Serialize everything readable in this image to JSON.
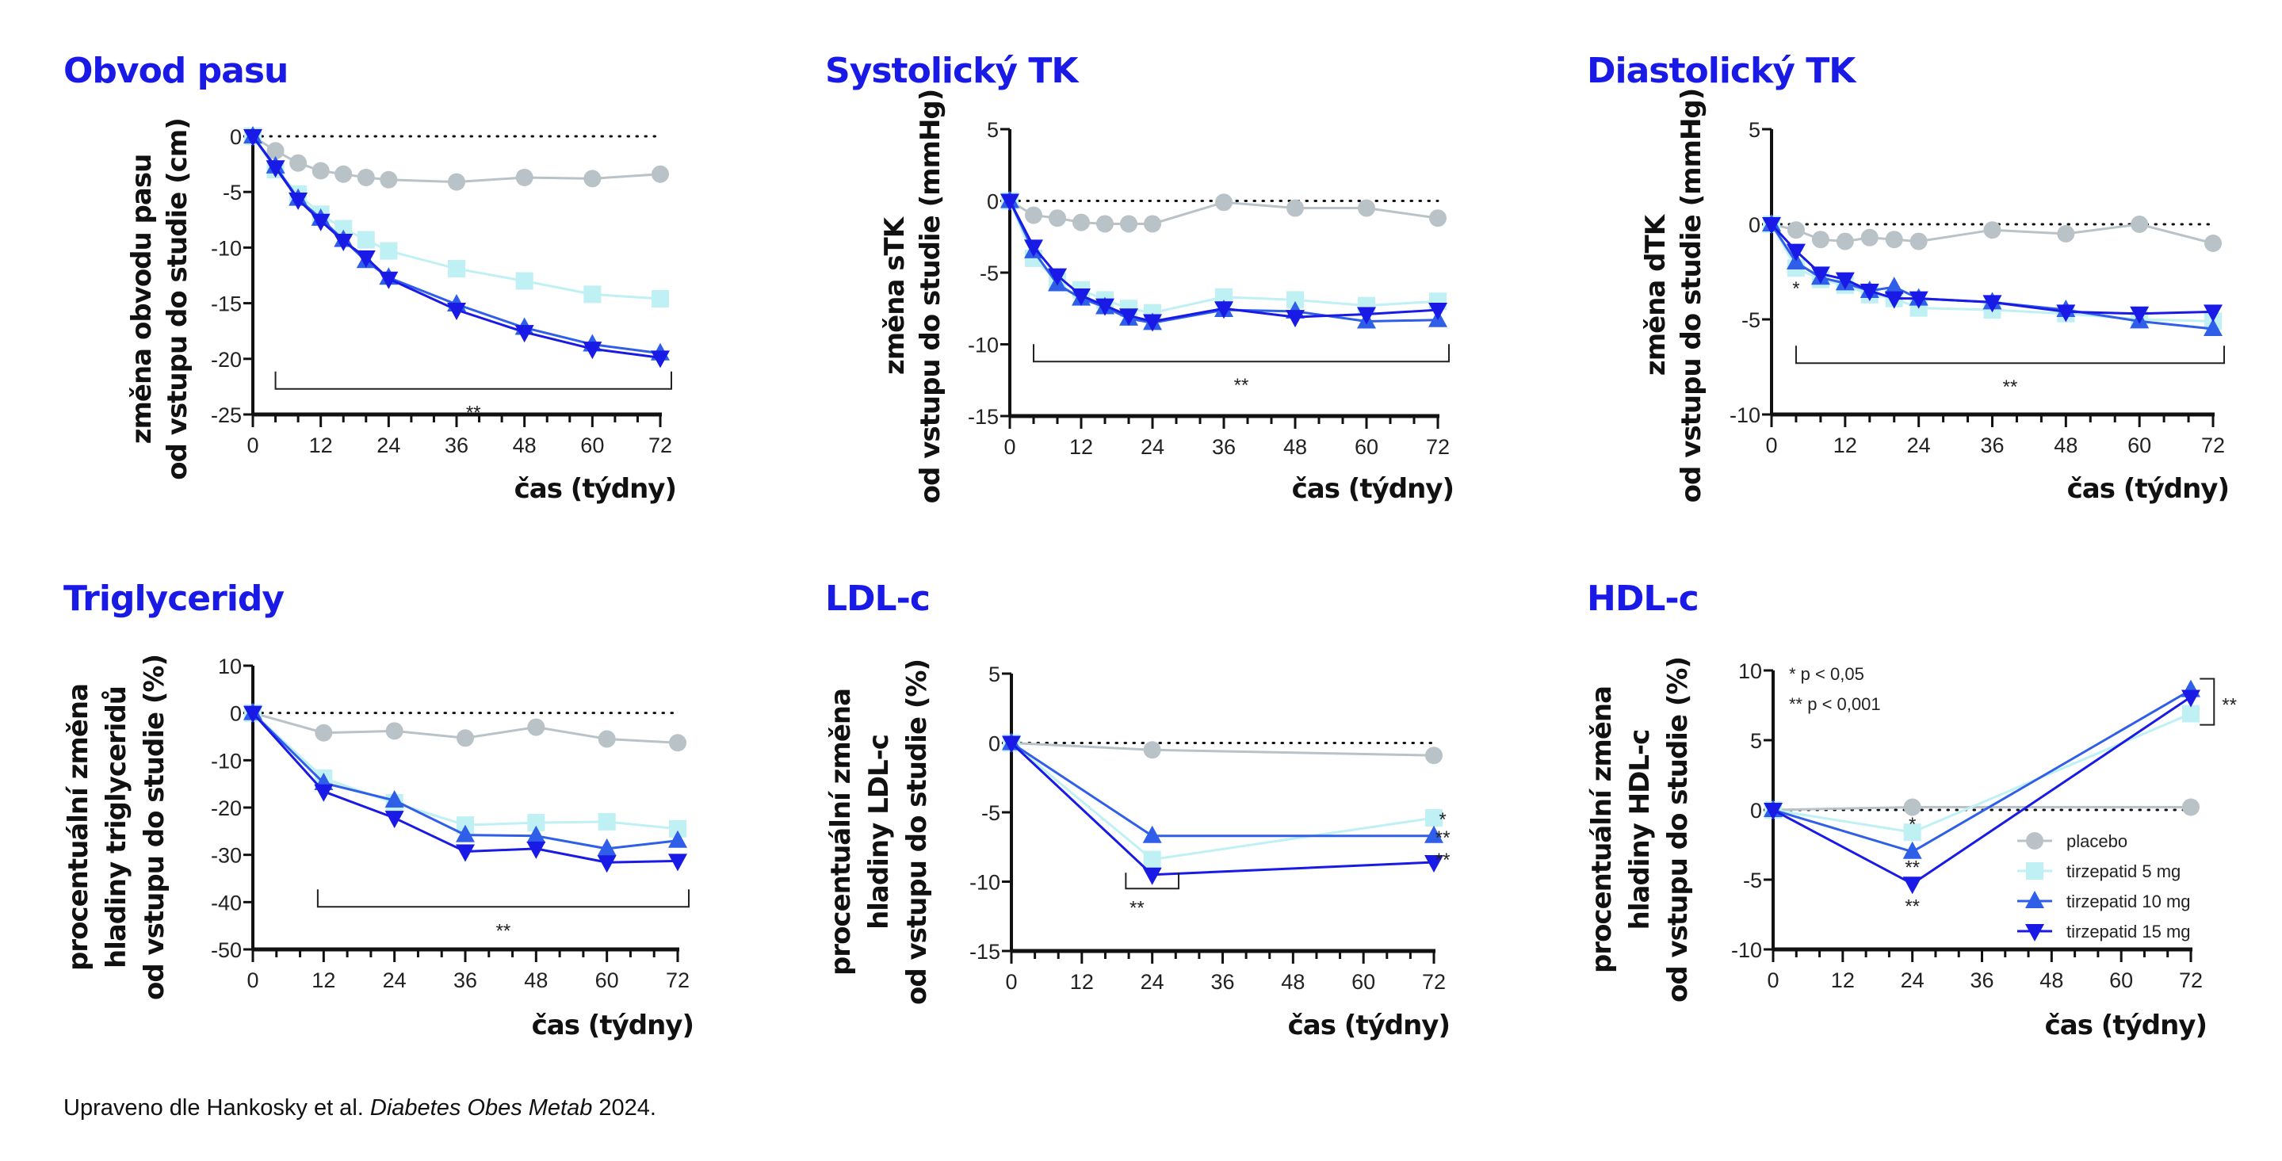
{
  "footer": {
    "prefix": "Upraveno dle Hankosky et al. ",
    "journal": "Diabetes Obes Metab",
    "suffix": " 2024."
  },
  "series_styles": [
    {
      "name": "placebo",
      "color": "#b9c3c7",
      "marker": "circle"
    },
    {
      "name": "tirzepatid 5 mg",
      "color": "#bff0f4",
      "marker": "square"
    },
    {
      "name": "tirzepatid 10 mg",
      "color": "#2f5fe8",
      "marker": "triangle-up"
    },
    {
      "name": "tirzepatid 15 mg",
      "color": "#1a1ae6",
      "marker": "triangle-down"
    }
  ],
  "title_color": "#1a1ae6",
  "chart_data": [
    {
      "id": "waist",
      "type": "line",
      "title": "Obvod pasu",
      "ylabel": [
        "změna obvodu pasu",
        "od vstupu do studie (cm)"
      ],
      "xlabel": "čas (týdny)",
      "ylim": [
        -25,
        0
      ],
      "yticks": [
        0,
        -5,
        -10,
        -15,
        -20,
        -25
      ],
      "xlim": [
        0,
        72
      ],
      "xticks": [
        0,
        12,
        24,
        36,
        48,
        60,
        72
      ],
      "x": [
        0,
        4,
        8,
        12,
        16,
        20,
        24,
        36,
        48,
        60,
        72
      ],
      "series": [
        {
          "name": "placebo",
          "values": [
            0,
            -1.3,
            -2.4,
            -3.1,
            -3.4,
            -3.7,
            -3.9,
            -4.1,
            -3.7,
            -3.8,
            -3.4
          ]
        },
        {
          "name": "tirzepatid 5 mg",
          "values": [
            0,
            -3.0,
            -5.2,
            -7.0,
            -8.3,
            -9.3,
            -10.3,
            -11.9,
            -13.0,
            -14.2,
            -14.6
          ]
        },
        {
          "name": "tirzepatid 10 mg",
          "values": [
            0,
            -2.7,
            -5.6,
            -7.4,
            -9.3,
            -11.2,
            -12.7,
            -15.1,
            -17.2,
            -18.7,
            -19.5
          ]
        },
        {
          "name": "tirzepatid 15 mg",
          "values": [
            0,
            -2.8,
            -5.7,
            -7.6,
            -9.4,
            -10.9,
            -12.8,
            -15.6,
            -17.6,
            -19.1,
            -19.9
          ]
        }
      ],
      "annotations": [
        {
          "type": "bracket-horizontal",
          "x_from": 4,
          "x_to": 72,
          "y": -22.7,
          "label": "**"
        }
      ],
      "grid": false,
      "reference_line": 0
    },
    {
      "id": "sbp",
      "type": "line",
      "title": "Systolický TK",
      "ylabel": [
        "změna sTK",
        "od vstupu do studie (mmHg)"
      ],
      "xlabel": "čas (týdny)",
      "ylim": [
        -15,
        5
      ],
      "yticks": [
        5,
        0,
        -5,
        -10,
        -15
      ],
      "xlim": [
        0,
        72
      ],
      "xticks": [
        0,
        12,
        24,
        36,
        48,
        60,
        72
      ],
      "x": [
        0,
        4,
        8,
        12,
        16,
        20,
        24,
        36,
        48,
        60,
        72
      ],
      "series": [
        {
          "name": "placebo",
          "values": [
            0,
            -1.0,
            -1.2,
            -1.5,
            -1.6,
            -1.6,
            -1.6,
            -0.1,
            -0.5,
            -0.5,
            -1.2
          ]
        },
        {
          "name": "tirzepatid 5 mg",
          "values": [
            0,
            -4.0,
            -5.6,
            -6.2,
            -6.9,
            -7.5,
            -7.8,
            -6.7,
            -6.9,
            -7.3,
            -7.0
          ]
        },
        {
          "name": "tirzepatid 10 mg",
          "values": [
            0,
            -3.5,
            -5.8,
            -6.8,
            -7.4,
            -8.2,
            -8.5,
            -7.6,
            -7.7,
            -8.4,
            -8.3
          ]
        },
        {
          "name": "tirzepatid 15 mg",
          "values": [
            0,
            -3.2,
            -5.2,
            -6.6,
            -7.3,
            -8.0,
            -8.4,
            -7.5,
            -8.1,
            -7.9,
            -7.6
          ]
        }
      ],
      "annotations": [
        {
          "type": "bracket-horizontal",
          "x_from": 4,
          "x_to": 72,
          "y": -11.2,
          "label": "**"
        }
      ],
      "grid": false,
      "reference_line": 0
    },
    {
      "id": "dbp",
      "type": "line",
      "title": "Diastolický TK",
      "ylabel": [
        "změna dTK",
        "od vstupu do studie (mmHg)"
      ],
      "xlabel": "čas (týdny)",
      "ylim": [
        -10,
        5
      ],
      "yticks": [
        5,
        0,
        -5,
        -10
      ],
      "xlim": [
        0,
        72
      ],
      "xticks": [
        0,
        12,
        24,
        36,
        48,
        60,
        72
      ],
      "x": [
        0,
        4,
        8,
        12,
        16,
        20,
        24,
        36,
        48,
        60,
        72
      ],
      "series": [
        {
          "name": "placebo",
          "values": [
            0,
            -0.3,
            -0.8,
            -0.9,
            -0.7,
            -0.8,
            -0.9,
            -0.3,
            -0.5,
            0.0,
            -1.0
          ]
        },
        {
          "name": "tirzepatid 5 mg",
          "values": [
            0,
            -2.3,
            -2.9,
            -3.2,
            -3.7,
            -3.9,
            -4.4,
            -4.5,
            -4.7,
            -5.0,
            -5.1
          ]
        },
        {
          "name": "tirzepatid 10 mg",
          "values": [
            0,
            -2.0,
            -2.8,
            -3.1,
            -3.5,
            -3.3,
            -3.9,
            -4.1,
            -4.5,
            -5.1,
            -5.5
          ]
        },
        {
          "name": "tirzepatid 15 mg",
          "values": [
            0,
            -1.4,
            -2.6,
            -2.9,
            -3.5,
            -3.9,
            -3.9,
            -4.1,
            -4.6,
            -4.7,
            -4.6
          ]
        }
      ],
      "annotations": [
        {
          "type": "text",
          "x": 4,
          "y": -3.3,
          "label": "*"
        },
        {
          "type": "bracket-horizontal",
          "x_from": 4,
          "x_to": 72,
          "y": -7.3,
          "label": "**"
        }
      ],
      "grid": false,
      "reference_line": 0
    },
    {
      "id": "tg",
      "type": "line",
      "title": "Triglyceridy",
      "ylabel": [
        "procentuální změna",
        "hladiny triglyceridů",
        "od vstupu do studie (%)"
      ],
      "xlabel": "čas (týdny)",
      "ylim": [
        -50,
        10
      ],
      "yticks": [
        10,
        0,
        -10,
        -20,
        -30,
        -40,
        -50
      ],
      "xlim": [
        0,
        72
      ],
      "xticks": [
        0,
        12,
        24,
        36,
        48,
        60,
        72
      ],
      "x": [
        0,
        12,
        24,
        36,
        48,
        60,
        72
      ],
      "series": [
        {
          "name": "placebo",
          "values": [
            0,
            -4.2,
            -3.8,
            -5.3,
            -3.0,
            -5.5,
            -6.3
          ]
        },
        {
          "name": "tirzepatid 5 mg",
          "values": [
            0,
            -13.8,
            -19.0,
            -23.7,
            -23.2,
            -23.0,
            -24.5
          ]
        },
        {
          "name": "tirzepatid 10 mg",
          "values": [
            0,
            -14.8,
            -18.5,
            -25.8,
            -26.0,
            -28.7,
            -27.0
          ]
        },
        {
          "name": "tirzepatid 15 mg",
          "values": [
            0,
            -16.6,
            -22.2,
            -29.3,
            -28.7,
            -31.6,
            -31.3
          ]
        }
      ],
      "annotations": [
        {
          "type": "bracket-horizontal",
          "x_from": 11,
          "x_to": 72,
          "y": -41,
          "label": "**"
        }
      ],
      "grid": false,
      "reference_line": 0
    },
    {
      "id": "ldl",
      "type": "line",
      "title": "LDL-c",
      "ylabel": [
        "procentuální změna",
        "hladiny LDL-c",
        "od vstupu do studie (%)"
      ],
      "xlabel": "čas (týdny)",
      "ylim": [
        -15,
        5
      ],
      "yticks": [
        5,
        0,
        -5,
        -10,
        -15
      ],
      "xlim": [
        0,
        72
      ],
      "xticks": [
        0,
        12,
        24,
        36,
        48,
        60,
        72
      ],
      "x": [
        0,
        24,
        72
      ],
      "series": [
        {
          "name": "placebo",
          "values": [
            0,
            -0.5,
            -0.9
          ]
        },
        {
          "name": "tirzepatid 5 mg",
          "values": [
            0,
            -8.4,
            -5.4
          ]
        },
        {
          "name": "tirzepatid 10 mg",
          "values": [
            0,
            -6.7,
            -6.7
          ]
        },
        {
          "name": "tirzepatid 15 mg",
          "values": [
            0,
            -9.5,
            -8.6
          ]
        }
      ],
      "annotations": [
        {
          "type": "bracket-horizontal-down",
          "x_from": 19.5,
          "x_to": 28.5,
          "y": -10.5,
          "label": "**"
        },
        {
          "type": "text",
          "x": 73.5,
          "y": -5.4,
          "label": "*"
        },
        {
          "type": "text",
          "x": 73.5,
          "y": -6.7,
          "label": "**"
        },
        {
          "type": "text",
          "x": 73.5,
          "y": -8.3,
          "label": "**"
        }
      ],
      "grid": false,
      "reference_line": 0
    },
    {
      "id": "hdl",
      "type": "line",
      "title": "HDL-c",
      "ylabel": [
        "procentuální změna",
        "hladiny HDL-c",
        "od vstupu do studie (%)"
      ],
      "xlabel": "čas (týdny)",
      "ylim": [
        -10,
        10
      ],
      "yticks": [
        10,
        5,
        0,
        -5,
        -10
      ],
      "xlim": [
        0,
        72
      ],
      "xticks": [
        0,
        12,
        24,
        36,
        48,
        60,
        72
      ],
      "x": [
        0,
        24,
        72
      ],
      "series": [
        {
          "name": "placebo",
          "values": [
            0,
            0.2,
            0.2
          ]
        },
        {
          "name": "tirzepatid 5 mg",
          "values": [
            0,
            -1.6,
            6.9
          ]
        },
        {
          "name": "tirzepatid 10 mg",
          "values": [
            0,
            -3.0,
            8.6
          ]
        },
        {
          "name": "tirzepatid 15 mg",
          "values": [
            0,
            -5.3,
            8.1
          ]
        }
      ],
      "annotations": [
        {
          "type": "text",
          "x": 24,
          "y": -0.9,
          "label": "*"
        },
        {
          "type": "text",
          "x": 24,
          "y": -4.0,
          "label": "**"
        },
        {
          "type": "text",
          "x": 24,
          "y": -6.8,
          "label": "**"
        },
        {
          "type": "bracket-vertical",
          "x": 76,
          "y_from": 9.4,
          "y_to": 6.1,
          "label": "**"
        }
      ],
      "significance_key": [
        "* p < 0,05",
        "** p < 0,001"
      ],
      "legend": {
        "placement": "lower-right",
        "entries": [
          "placebo",
          "tirzepatid 5 mg",
          "tirzepatid 10 mg",
          "tirzepatid 15 mg"
        ]
      },
      "grid": false,
      "reference_line": 0
    }
  ]
}
